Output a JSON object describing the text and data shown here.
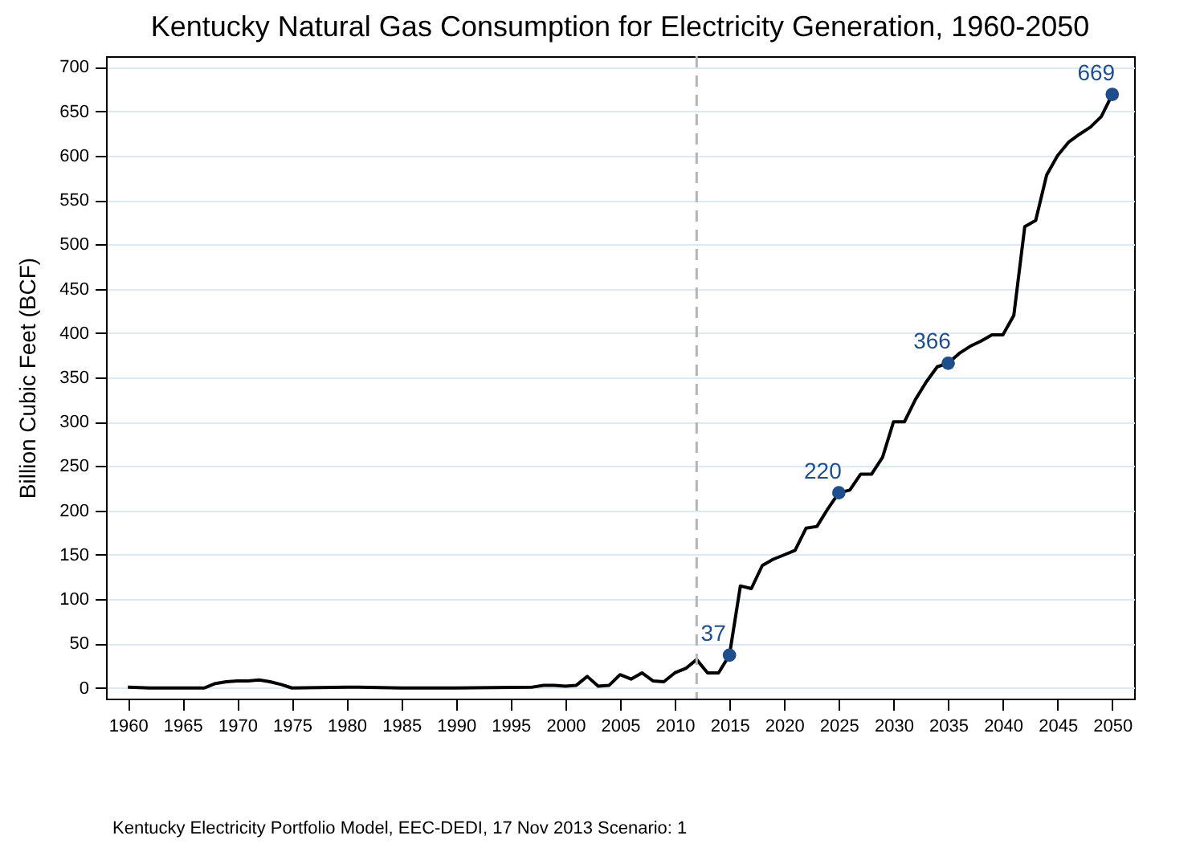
{
  "chart_data": {
    "type": "line",
    "title": "Kentucky Natural Gas Consumption for Electricity Generation, 1960-2050",
    "ylabel": "Billion Cubic Feet (BCF)",
    "annotations": [
      "Kentucky Electricity Portfolio Model, EEC-DEDI, 17 Nov 2013 Scenario: 1"
    ],
    "xlim": [
      1958,
      2052
    ],
    "xticks": [
      1960,
      1965,
      1970,
      1975,
      1980,
      1985,
      1990,
      1995,
      2000,
      2005,
      2010,
      2015,
      2020,
      2025,
      2030,
      2035,
      2040,
      2045,
      2050
    ],
    "ylim": [
      -12,
      712
    ],
    "yticks": [
      0,
      50,
      100,
      150,
      200,
      250,
      300,
      350,
      400,
      450,
      500,
      550,
      600,
      650,
      700
    ],
    "grid": "y",
    "ref_lines": [
      {
        "axis": "x",
        "value": 2012,
        "color": "#b4b4b4",
        "line_style": "dashed"
      }
    ],
    "series": [
      {
        "color": "#000000",
        "marker": "none",
        "x": [
          1960,
          1962,
          1964,
          1966,
          1967,
          1968,
          1969,
          1970,
          1971,
          1972,
          1973,
          1974,
          1975,
          1980,
          1981,
          1985,
          1990,
          1997,
          1998,
          1999,
          2000,
          2001,
          2002,
          2003,
          2004,
          2005,
          2006,
          2007,
          2008,
          2009,
          2010,
          2011,
          2012,
          2013,
          2014,
          2015,
          2016,
          2017,
          2018,
          2019,
          2020,
          2021,
          2022,
          2023,
          2024,
          2025,
          2026,
          2027,
          2028,
          2029,
          2030,
          2031,
          2032,
          2033,
          2034,
          2035,
          2036,
          2037,
          2038,
          2039,
          2040,
          2041,
          2042,
          2043,
          2044,
          2045,
          2046,
          2047,
          2048,
          2049,
          2050
        ],
        "values": [
          1,
          0,
          0,
          0,
          0,
          5,
          7,
          8,
          8,
          9,
          7,
          4,
          0,
          1,
          1,
          0,
          0,
          1,
          3,
          3,
          2,
          3,
          13,
          2,
          3,
          15,
          10,
          17,
          8,
          7,
          17,
          22,
          32,
          17,
          17,
          37,
          115,
          112,
          138,
          145,
          150,
          155,
          180,
          182,
          202,
          220,
          223,
          241,
          241,
          260,
          300,
          300,
          325,
          345,
          362,
          366,
          377,
          385,
          391,
          398,
          398,
          420,
          520,
          527,
          578,
          600,
          615,
          624,
          632,
          644,
          669
        ]
      },
      {
        "type": "scatter",
        "color": "#1f4e8c",
        "marker": "circle",
        "x": [
          2015,
          2025,
          2035,
          2050
        ],
        "values": [
          37,
          220,
          366,
          669
        ],
        "data_labels": true
      }
    ]
  }
}
